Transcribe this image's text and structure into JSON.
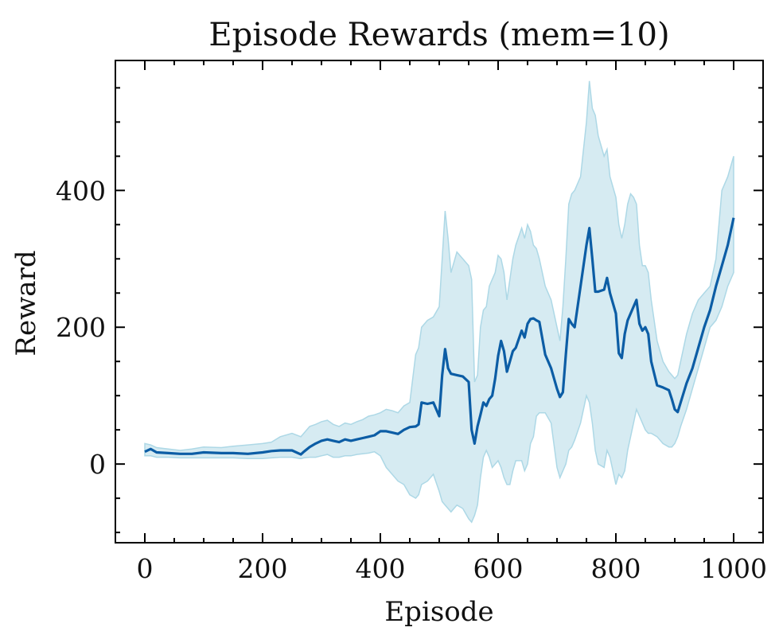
{
  "chart_data": {
    "type": "line",
    "title": "Episode Rewards (mem=10)",
    "xlabel": "Episode",
    "ylabel": "Reward",
    "xlim": [
      -50,
      1050
    ],
    "ylim": [
      -115,
      590
    ],
    "xticks": [
      0,
      200,
      400,
      600,
      800,
      1000
    ],
    "xtick_labels": [
      "0",
      "200",
      "400",
      "600",
      "800",
      "1000"
    ],
    "yticks": [
      0,
      200,
      400
    ],
    "ytick_labels": [
      "0",
      "200",
      "400"
    ],
    "grid": false,
    "colors": {
      "line": "#0c5da5",
      "band": "#add8e6"
    },
    "series": [
      {
        "x": [
          0,
          10,
          20,
          40,
          60,
          80,
          100,
          130,
          150,
          175,
          200,
          215,
          230,
          250,
          265,
          270,
          280,
          290,
          300,
          310,
          320,
          330,
          340,
          350,
          360,
          370,
          380,
          390,
          400,
          410,
          420,
          430,
          440,
          450,
          460,
          465,
          470,
          480,
          490,
          500,
          505,
          510,
          515,
          520,
          530,
          540,
          550,
          555,
          560,
          565,
          570,
          575,
          580,
          585,
          590,
          595,
          600,
          605,
          610,
          615,
          620,
          625,
          630,
          640,
          645,
          650,
          655,
          660,
          665,
          670,
          680,
          690,
          700,
          705,
          710,
          715,
          720,
          725,
          730,
          740,
          750,
          755,
          760,
          765,
          770,
          780,
          785,
          790,
          800,
          805,
          810,
          815,
          820,
          825,
          830,
          835,
          840,
          845,
          850,
          855,
          860,
          870,
          880,
          890,
          895,
          900,
          905,
          910,
          920,
          930,
          940,
          950,
          960,
          970,
          980,
          990,
          1000
        ],
        "mean": [
          18,
          22,
          17,
          16,
          15,
          15,
          17,
          16,
          16,
          15,
          17,
          19,
          20,
          20,
          14,
          18,
          25,
          30,
          34,
          36,
          34,
          32,
          36,
          34,
          36,
          38,
          40,
          42,
          48,
          48,
          46,
          44,
          50,
          54,
          55,
          58,
          90,
          88,
          90,
          70,
          130,
          168,
          140,
          132,
          130,
          128,
          120,
          50,
          30,
          55,
          72,
          90,
          85,
          95,
          100,
          125,
          158,
          180,
          165,
          135,
          150,
          165,
          170,
          195,
          185,
          205,
          212,
          213,
          210,
          208,
          160,
          140,
          110,
          98,
          105,
          160,
          212,
          205,
          200,
          260,
          320,
          345,
          300,
          252,
          252,
          255,
          272,
          250,
          220,
          162,
          155,
          190,
          210,
          220,
          230,
          240,
          205,
          195,
          200,
          190,
          150,
          115,
          112,
          108,
          95,
          80,
          76,
          90,
          118,
          140,
          170,
          200,
          225,
          260,
          290,
          320,
          360
        ],
        "upper": [
          30,
          28,
          24,
          22,
          20,
          22,
          25,
          24,
          26,
          28,
          30,
          32,
          40,
          45,
          40,
          45,
          55,
          58,
          62,
          64,
          58,
          55,
          60,
          58,
          62,
          65,
          70,
          72,
          75,
          80,
          78,
          75,
          85,
          90,
          160,
          170,
          200,
          210,
          215,
          230,
          300,
          370,
          330,
          280,
          310,
          300,
          290,
          270,
          120,
          130,
          200,
          225,
          230,
          260,
          270,
          280,
          305,
          300,
          280,
          240,
          270,
          300,
          320,
          345,
          330,
          350,
          340,
          320,
          315,
          300,
          260,
          240,
          200,
          180,
          230,
          300,
          380,
          395,
          400,
          420,
          500,
          560,
          520,
          510,
          480,
          450,
          460,
          420,
          390,
          350,
          330,
          350,
          380,
          395,
          390,
          380,
          320,
          290,
          290,
          280,
          240,
          180,
          150,
          135,
          130,
          125,
          130,
          150,
          190,
          220,
          240,
          250,
          260,
          300,
          400,
          420,
          450
        ],
        "lower": [
          12,
          12,
          10,
          10,
          9,
          9,
          9,
          9,
          9,
          8,
          8,
          9,
          10,
          10,
          8,
          9,
          10,
          10,
          12,
          14,
          10,
          10,
          12,
          12,
          14,
          15,
          16,
          18,
          12,
          -5,
          -15,
          -25,
          -30,
          -45,
          -50,
          -45,
          -30,
          -25,
          -15,
          -40,
          -55,
          -60,
          -65,
          -70,
          -60,
          -65,
          -80,
          -85,
          -75,
          -60,
          -20,
          10,
          20,
          10,
          -5,
          0,
          5,
          -5,
          -20,
          -30,
          -30,
          -10,
          5,
          5,
          -10,
          0,
          30,
          40,
          70,
          75,
          75,
          60,
          -5,
          -20,
          -10,
          0,
          20,
          25,
          35,
          60,
          100,
          90,
          60,
          20,
          0,
          -5,
          20,
          10,
          -30,
          -15,
          -20,
          -10,
          20,
          40,
          60,
          80,
          70,
          60,
          50,
          45,
          45,
          40,
          30,
          25,
          25,
          30,
          40,
          55,
          80,
          110,
          140,
          170,
          200,
          210,
          230,
          260,
          280
        ]
      }
    ]
  }
}
